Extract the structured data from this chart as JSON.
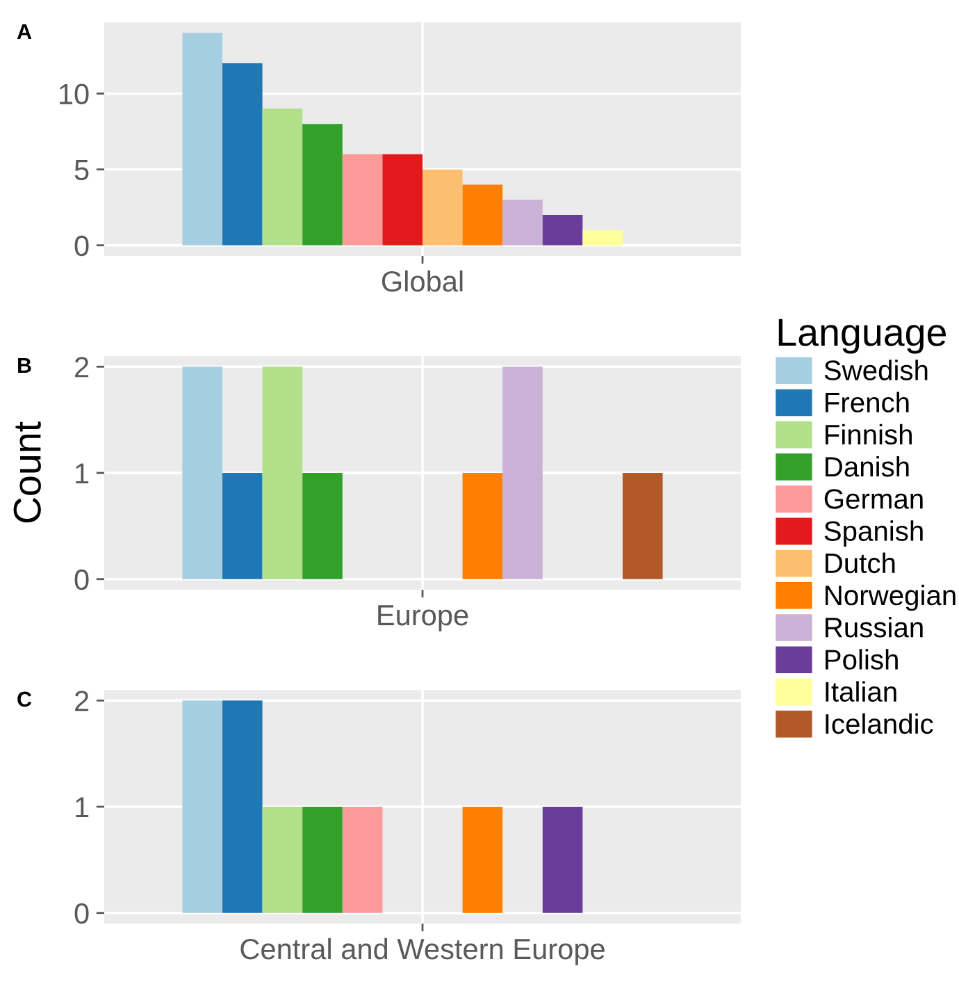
{
  "chart_data": [
    {
      "type": "bar",
      "categories": [
        "Global"
      ],
      "ylim": [
        -0.7,
        14.7
      ],
      "yticks": [
        0,
        5,
        10
      ],
      "grid": true,
      "legend": "right",
      "legend_title": "Language",
      "annotations": [
        "A"
      ],
      "series": [
        {
          "name": "Swedish",
          "color": "#a6cee3",
          "values": [
            14
          ]
        },
        {
          "name": "French",
          "color": "#1f78b4",
          "values": [
            12
          ]
        },
        {
          "name": "Finnish",
          "color": "#b2df8a",
          "values": [
            9
          ]
        },
        {
          "name": "Danish",
          "color": "#33a02c",
          "values": [
            8
          ]
        },
        {
          "name": "German",
          "color": "#fb9a99",
          "values": [
            6
          ]
        },
        {
          "name": "Spanish",
          "color": "#e31a1c",
          "values": [
            6
          ]
        },
        {
          "name": "Dutch",
          "color": "#fdbf6f",
          "values": [
            5
          ]
        },
        {
          "name": "Norwegian",
          "color": "#ff7f00",
          "values": [
            4
          ]
        },
        {
          "name": "Russian",
          "color": "#cab2d6",
          "values": [
            3
          ]
        },
        {
          "name": "Polish",
          "color": "#6a3d9a",
          "values": [
            2
          ]
        },
        {
          "name": "Italian",
          "color": "#ffff99",
          "values": [
            1
          ]
        },
        {
          "name": "Icelandic",
          "color": "#b15928",
          "values": [
            null
          ]
        }
      ]
    },
    {
      "type": "bar",
      "categories": [
        "Europe"
      ],
      "ylim": [
        -0.1,
        2.1
      ],
      "yticks": [
        0,
        1,
        2
      ],
      "grid": true,
      "ylabel": "Count",
      "annotations": [
        "B"
      ],
      "series": [
        {
          "color": "#a6cee3",
          "values": [
            2
          ]
        },
        {
          "color": "#1f78b4",
          "values": [
            1
          ]
        },
        {
          "color": "#b2df8a",
          "values": [
            2
          ]
        },
        {
          "color": "#33a02c",
          "values": [
            1
          ]
        },
        {
          "color": "#fb9a99",
          "values": [
            null
          ]
        },
        {
          "color": "#e31a1c",
          "values": [
            null
          ]
        },
        {
          "color": "#fdbf6f",
          "values": [
            null
          ]
        },
        {
          "color": "#ff7f00",
          "values": [
            1
          ]
        },
        {
          "color": "#cab2d6",
          "values": [
            2
          ]
        },
        {
          "color": "#6a3d9a",
          "values": [
            null
          ]
        },
        {
          "color": "#ffff99",
          "values": [
            null
          ]
        },
        {
          "color": "#b15928",
          "values": [
            1
          ]
        }
      ]
    },
    {
      "type": "bar",
      "categories": [
        "Central and Western Europe"
      ],
      "ylim": [
        -0.1,
        2.1
      ],
      "yticks": [
        0,
        1,
        2
      ],
      "grid": true,
      "annotations": [
        "C"
      ],
      "series": [
        {
          "color": "#a6cee3",
          "values": [
            2
          ]
        },
        {
          "color": "#1f78b4",
          "values": [
            2
          ]
        },
        {
          "color": "#b2df8a",
          "values": [
            1
          ]
        },
        {
          "color": "#33a02c",
          "values": [
            1
          ]
        },
        {
          "color": "#fb9a99",
          "values": [
            1
          ]
        },
        {
          "color": "#e31a1c",
          "values": [
            null
          ]
        },
        {
          "color": "#fdbf6f",
          "values": [
            null
          ]
        },
        {
          "color": "#ff7f00",
          "values": [
            1
          ]
        },
        {
          "color": "#cab2d6",
          "values": [
            null
          ]
        },
        {
          "color": "#6a3d9a",
          "values": [
            1
          ]
        },
        {
          "color": "#ffff99",
          "values": [
            null
          ]
        },
        {
          "color": "#b15928",
          "values": [
            null
          ]
        }
      ]
    }
  ]
}
